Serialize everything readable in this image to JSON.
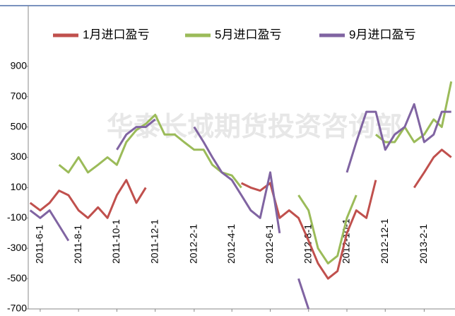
{
  "chart_data": {
    "type": "line",
    "watermark": "华泰长城期货投资咨询部",
    "x": [
      "2011-5-16",
      "2011-6-1",
      "2011-6-16",
      "2011-7-1",
      "2011-7-16",
      "2011-8-1",
      "2011-8-16",
      "2011-9-1",
      "2011-9-16",
      "2011-10-1",
      "2011-10-16",
      "2011-11-1",
      "2011-11-16",
      "2011-12-1",
      "2011-12-16",
      "2012-1-1",
      "2012-1-16",
      "2012-2-1",
      "2012-2-16",
      "2012-3-1",
      "2012-3-16",
      "2012-4-1",
      "2012-4-16",
      "2012-5-1",
      "2012-5-16",
      "2012-6-1",
      "2012-6-16",
      "2012-7-1",
      "2012-7-16",
      "2012-8-1",
      "2012-8-16",
      "2012-9-1",
      "2012-9-16",
      "2012-10-1",
      "2012-10-16",
      "2012-11-1",
      "2012-11-16",
      "2012-12-1",
      "2012-12-16",
      "2013-1-1",
      "2013-1-16",
      "2013-2-1",
      "2013-2-16",
      "2013-3-1",
      "2013-3-16"
    ],
    "series": [
      {
        "name": "1月进口盈亏",
        "color": "#c0504d",
        "values": [
          0,
          -50,
          0,
          80,
          50,
          -50,
          -100,
          -30,
          -100,
          50,
          150,
          0,
          100,
          null,
          null,
          null,
          null,
          null,
          null,
          null,
          null,
          null,
          130,
          100,
          80,
          130,
          -100,
          -50,
          -100,
          -250,
          -400,
          -500,
          -450,
          -200,
          -50,
          -100,
          150,
          null,
          null,
          null,
          100,
          200,
          300,
          350,
          300
        ]
      },
      {
        "name": "5月进口盈亏",
        "color": "#9bbb59",
        "values": [
          null,
          null,
          null,
          250,
          200,
          300,
          200,
          250,
          300,
          250,
          400,
          480,
          520,
          580,
          450,
          450,
          400,
          350,
          350,
          250,
          200,
          180,
          100,
          null,
          null,
          null,
          null,
          null,
          50,
          -50,
          -300,
          -400,
          -350,
          -100,
          50,
          null,
          450,
          400,
          400,
          500,
          400,
          450,
          550,
          500,
          800
        ]
      },
      {
        "name": "9月进口盈亏",
        "color": "#8064a2",
        "values": [
          -50,
          -100,
          -50,
          -150,
          -250,
          null,
          null,
          null,
          null,
          350,
          450,
          500,
          500,
          550,
          null,
          null,
          null,
          500,
          400,
          300,
          200,
          150,
          50,
          -50,
          -100,
          200,
          -200,
          null,
          -500,
          -700,
          null,
          null,
          null,
          200,
          400,
          600,
          600,
          350,
          450,
          500,
          650,
          400,
          450,
          600,
          600
        ]
      }
    ],
    "xlim": [
      "2011-5-13",
      "2013-3-22"
    ],
    "xticks": [
      "2011-6-1",
      "2011-8-1",
      "2011-10-1",
      "2011-12-1",
      "2012-2-1",
      "2012-4-1",
      "2012-6-1",
      "2012-8-1",
      "2012-10-1",
      "2012-12-1",
      "2013-2-1"
    ],
    "ylim": [
      -700,
      1300
    ],
    "yticks": [
      -700,
      -500,
      -300,
      -100,
      100,
      300,
      500,
      700,
      900
    ],
    "grid": false
  }
}
